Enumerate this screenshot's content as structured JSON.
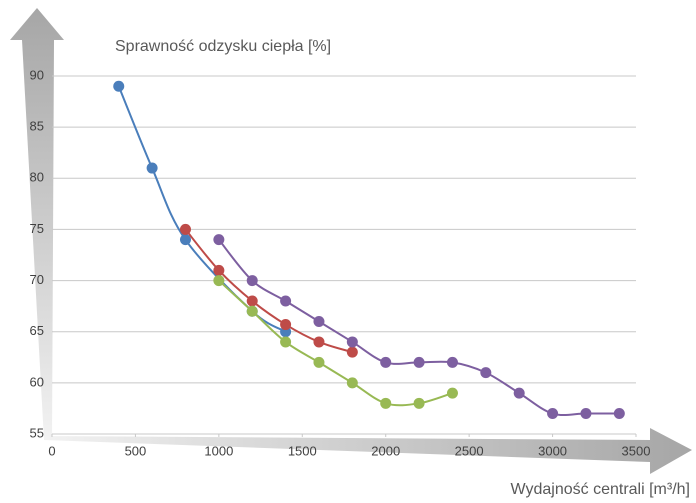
{
  "chart_data": {
    "type": "line",
    "y_label": "Sprawność  odzysku ciepła [%]",
    "x_label": "Wydajność centrali [m³/h]",
    "xlim": [
      0,
      3500
    ],
    "xticks": [
      0,
      500,
      1000,
      1500,
      2000,
      2500,
      3000,
      3500
    ],
    "ylim": [
      55,
      90
    ],
    "yticks": [
      55,
      60,
      65,
      70,
      75,
      80,
      85,
      90
    ],
    "grid": true,
    "smooth": true,
    "series": [
      {
        "color": "#4a7ebb",
        "x": [
          400,
          600,
          800,
          1200,
          1400
        ],
        "values": [
          89,
          81,
          74,
          67,
          65
        ]
      },
      {
        "color": "#be4b48",
        "x": [
          800,
          1000,
          1200,
          1400,
          1600,
          1800
        ],
        "values": [
          75,
          71,
          68,
          65.7,
          64,
          63
        ]
      },
      {
        "color": "#98b954",
        "x": [
          1000,
          1200,
          1400,
          1600,
          1800,
          2000,
          2200,
          2400
        ],
        "values": [
          70,
          67,
          64,
          62,
          60,
          58,
          58,
          59
        ]
      },
      {
        "color": "#7d5fa0",
        "x": [
          1000,
          1200,
          1400,
          1600,
          1800,
          2000,
          2200,
          2400,
          2600,
          2800,
          3000,
          3200,
          3400
        ],
        "values": [
          74,
          70,
          68,
          66,
          64,
          62,
          62,
          62,
          61,
          59,
          57,
          57,
          57
        ]
      }
    ]
  }
}
